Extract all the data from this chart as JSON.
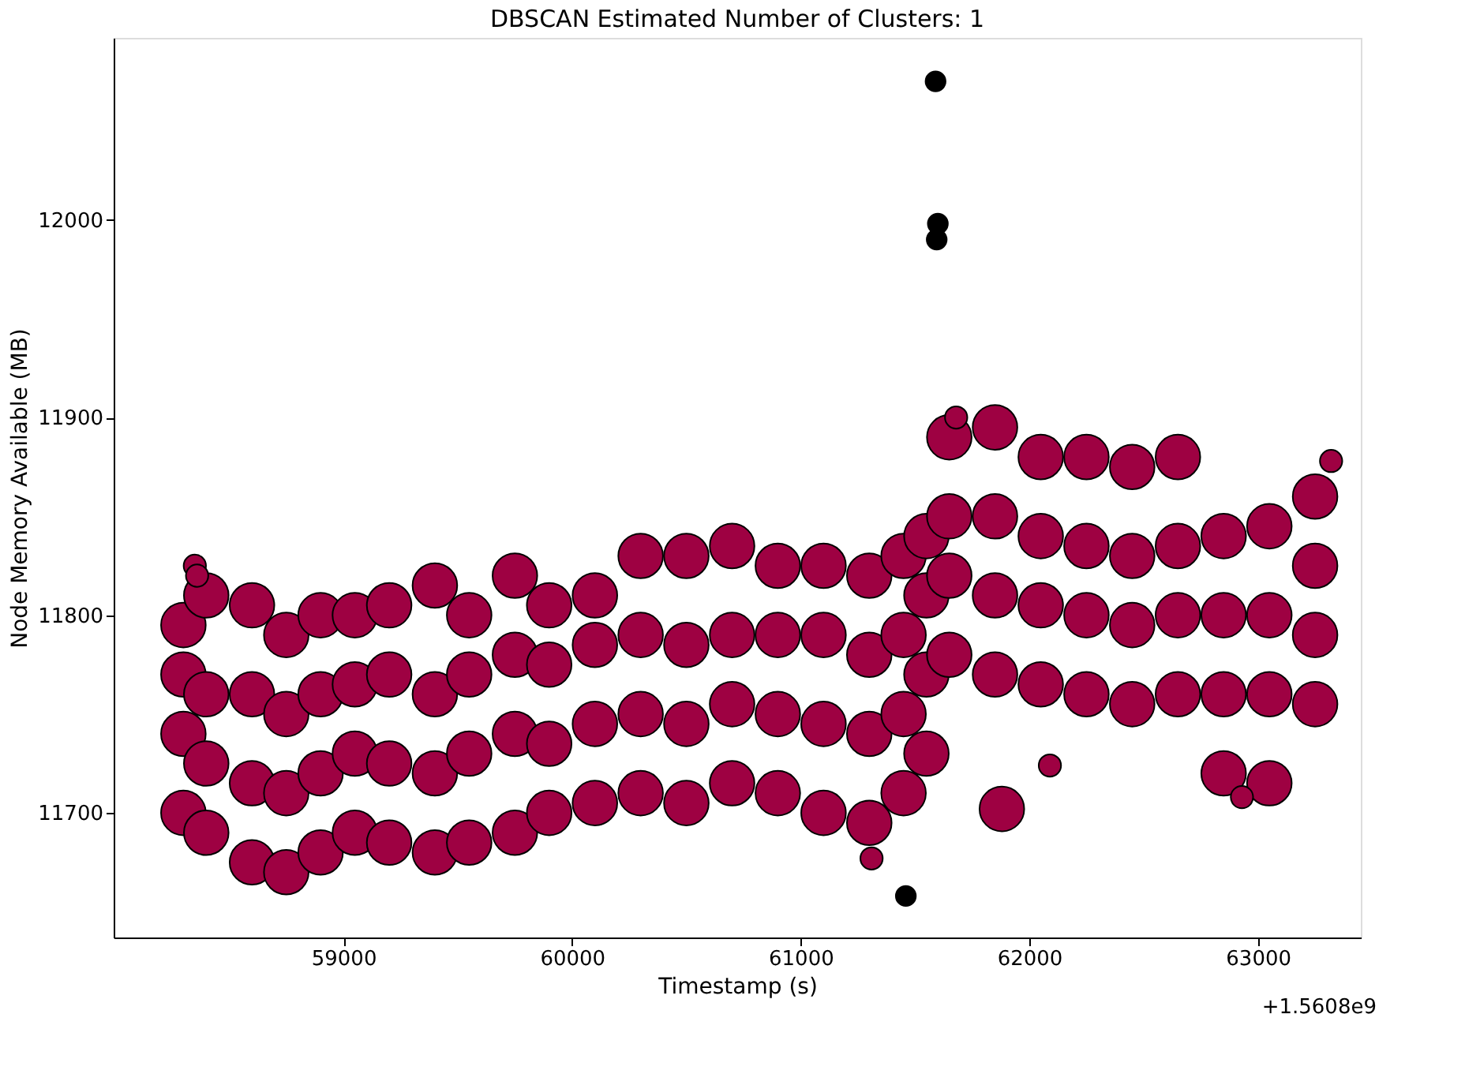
{
  "chart_data": {
    "type": "bubble",
    "title": "DBSCAN Estimated Number of Clusters: 1",
    "xlabel": "Timestamp (s)",
    "ylabel": "Node Memory Available (MB)",
    "xlim": [
      57995,
      63450
    ],
    "xticks": [
      59000,
      60000,
      61000,
      62000,
      63000
    ],
    "ylim": [
      11637,
      12092
    ],
    "yticks": [
      11700,
      11800,
      11900,
      12000
    ],
    "annotations": [
      "+1.5608e9"
    ],
    "series": [
      {
        "color": "#9e0142",
        "x": [
          58300,
          58300,
          58300,
          58300,
          58400,
          58400,
          58400,
          58400,
          58600,
          58600,
          58600,
          58600,
          58750,
          58750,
          58750,
          58750,
          58900,
          58900,
          58900,
          58900,
          59050,
          59050,
          59050,
          59050,
          59200,
          59200,
          59200,
          59200,
          59400,
          59400,
          59400,
          59400,
          59550,
          59550,
          59550,
          59550,
          59750,
          59750,
          59750,
          59750,
          59900,
          59900,
          59900,
          59900,
          60100,
          60100,
          60100,
          60100,
          60300,
          60300,
          60300,
          60300,
          60500,
          60500,
          60500,
          60500,
          60700,
          60700,
          60700,
          60700,
          60900,
          60900,
          60900,
          60900,
          61100,
          61100,
          61100,
          61100,
          61300,
          61300,
          61300,
          61300,
          61450,
          61450,
          61450,
          61450,
          61550,
          61550,
          61550,
          61550,
          61650,
          61650,
          61650,
          61650,
          61850,
          61850,
          61850,
          61850,
          62050,
          62050,
          62050,
          62050,
          62250,
          62250,
          62250,
          62250,
          62450,
          62450,
          62450,
          62450,
          62650,
          62650,
          62650,
          62650,
          62850,
          62850,
          62850,
          62850,
          63050,
          63050,
          63050,
          63050,
          63250,
          63250,
          63250,
          63250,
          58350,
          58360,
          61310,
          61680,
          62090,
          62930,
          63320,
          61880
        ],
        "values": [
          11700,
          11740,
          11770,
          11795,
          11690,
          11725,
          11760,
          11810,
          11675,
          11715,
          11760,
          11805,
          11670,
          11710,
          11750,
          11790,
          11680,
          11720,
          11760,
          11800,
          11690,
          11730,
          11765,
          11800,
          11685,
          11725,
          11770,
          11805,
          11680,
          11720,
          11760,
          11815,
          11685,
          11730,
          11770,
          11800,
          11690,
          11740,
          11780,
          11820,
          11700,
          11735,
          11775,
          11805,
          11705,
          11745,
          11785,
          11810,
          11710,
          11750,
          11790,
          11830,
          11705,
          11745,
          11785,
          11830,
          11715,
          11755,
          11790,
          11835,
          11710,
          11750,
          11790,
          11825,
          11700,
          11745,
          11790,
          11825,
          11695,
          11740,
          11780,
          11820,
          11710,
          11750,
          11790,
          11830,
          11730,
          11770,
          11810,
          11840,
          11780,
          11820,
          11850,
          11890,
          11770,
          11810,
          11850,
          11895,
          11765,
          11805,
          11840,
          11880,
          11760,
          11800,
          11835,
          11880,
          11755,
          11795,
          11830,
          11875,
          11760,
          11800,
          11835,
          11880,
          11720,
          11760,
          11800,
          11840,
          11715,
          11760,
          11800,
          11845,
          11755,
          11790,
          11825,
          11860,
          11825,
          11820,
          11677,
          11900,
          11724,
          11708,
          11878,
          11702
        ],
        "sizes": [
          1,
          1,
          1,
          1,
          1,
          1,
          1,
          1,
          1,
          1,
          1,
          1,
          1,
          1,
          1,
          1,
          1,
          1,
          1,
          1,
          1,
          1,
          1,
          1,
          1,
          1,
          1,
          1,
          1,
          1,
          1,
          1,
          1,
          1,
          1,
          1,
          1,
          1,
          1,
          1,
          1,
          1,
          1,
          1,
          1,
          1,
          1,
          1,
          1,
          1,
          1,
          1,
          1,
          1,
          1,
          1,
          1,
          1,
          1,
          1,
          1,
          1,
          1,
          1,
          1,
          1,
          1,
          1,
          1,
          1,
          1,
          1,
          1,
          1,
          1,
          1,
          1,
          1,
          1,
          1,
          1,
          1,
          1,
          1,
          1,
          1,
          1,
          1,
          1,
          1,
          1,
          1,
          1,
          1,
          1,
          1,
          1,
          1,
          1,
          1,
          1,
          1,
          1,
          1,
          1,
          1,
          1,
          1,
          1,
          1,
          1,
          1,
          1,
          1,
          1,
          1,
          0.25,
          0.25,
          0.25,
          0.25,
          0.25,
          0.25,
          0.25,
          1
        ]
      },
      {
        "color": "#000000",
        "x": [
          61590,
          61600,
          61595,
          61460
        ],
        "values": [
          12070,
          11998,
          11990,
          11658
        ],
        "sizes": [
          0.2,
          0.2,
          0.2,
          0.2
        ]
      }
    ]
  }
}
